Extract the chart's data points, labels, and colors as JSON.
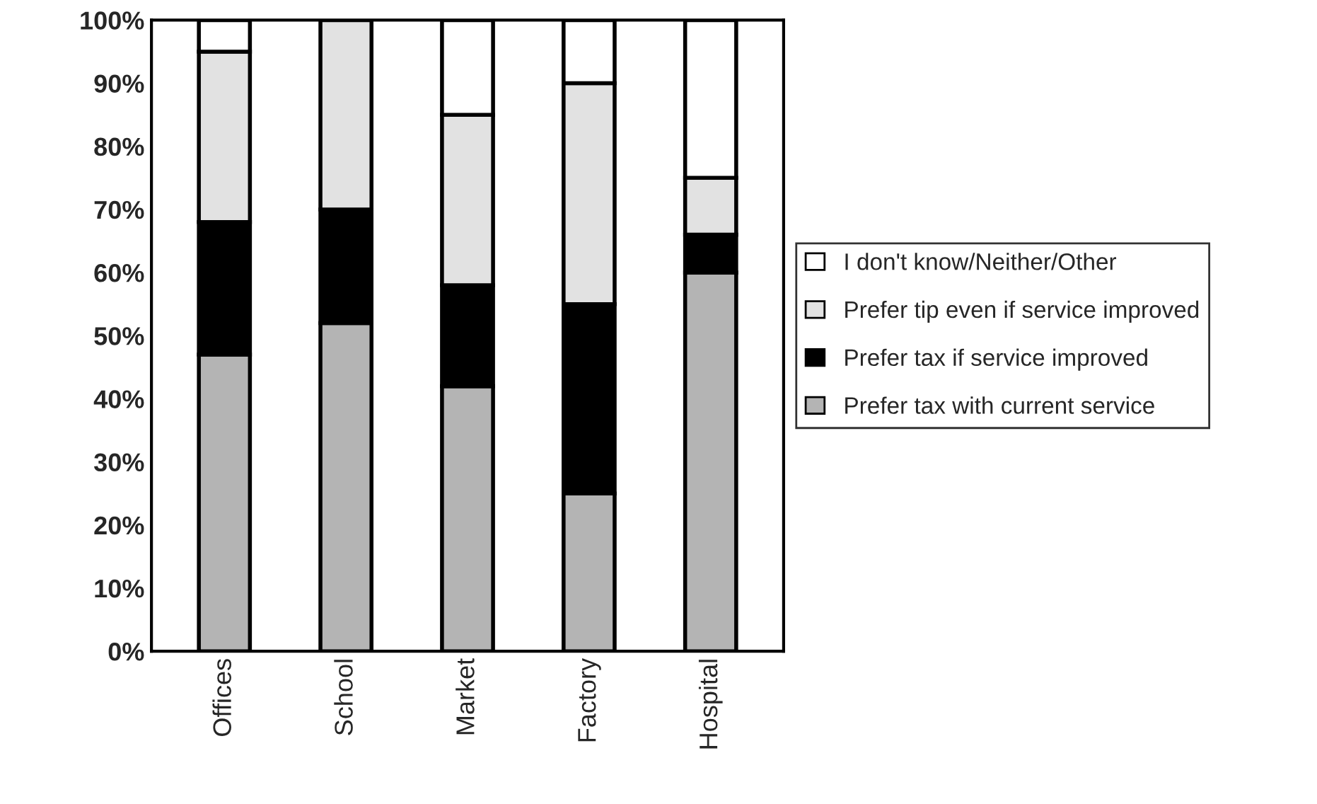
{
  "chart_data": {
    "type": "bar",
    "stacked": true,
    "categories": [
      "Offices",
      "School",
      "Market",
      "Factory",
      "Hospital"
    ],
    "series": [
      {
        "name": "Prefer tax with current service",
        "color": "#b4b4b4",
        "values": [
          47,
          52,
          42,
          25,
          60
        ]
      },
      {
        "name": "Prefer tax if service improved",
        "color": "#000000",
        "values": [
          21,
          18,
          16,
          30,
          6
        ]
      },
      {
        "name": "Prefer tip even if service improved",
        "color": "#e2e2e2",
        "values": [
          27,
          30,
          27,
          35,
          9
        ]
      },
      {
        "name": "I don't know/Neither/Other",
        "color": "#ffffff",
        "values": [
          5,
          null,
          15,
          10,
          25
        ]
      }
    ],
    "ylim": [
      0,
      100
    ],
    "yticks": [
      {
        "value": 0,
        "label": "0%"
      },
      {
        "value": 10,
        "label": "10%"
      },
      {
        "value": 20,
        "label": "20%"
      },
      {
        "value": 30,
        "label": "30%"
      },
      {
        "value": 40,
        "label": "40%"
      },
      {
        "value": 50,
        "label": "50%"
      },
      {
        "value": 60,
        "label": "60%"
      },
      {
        "value": 70,
        "label": "70%"
      },
      {
        "value": 80,
        "label": "80%"
      },
      {
        "value": 90,
        "label": "90%"
      },
      {
        "value": 100,
        "label": "100%"
      }
    ],
    "grid": false,
    "legend": "right"
  }
}
